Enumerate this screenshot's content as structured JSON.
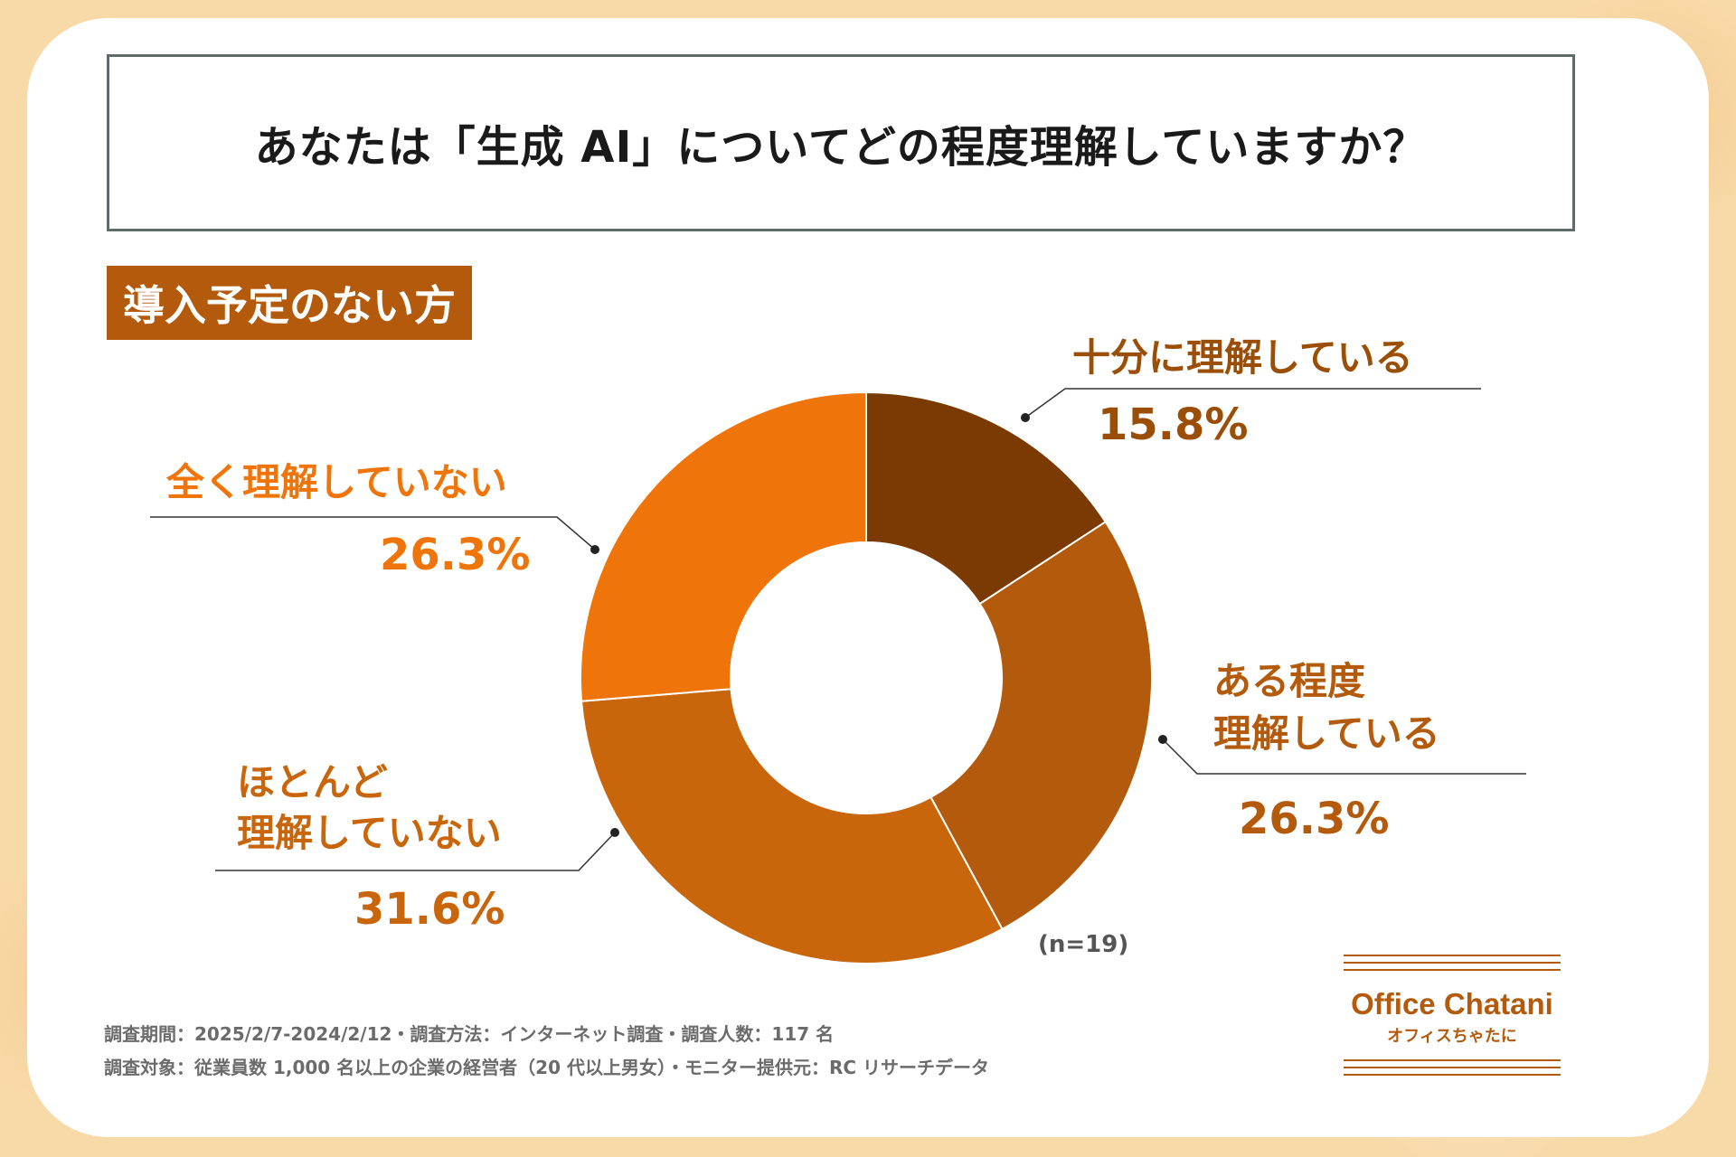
{
  "title": "あなたは「生成 AI」についてどの程度理解していますか？",
  "segment": "導入予定のない方",
  "n_label": "(n=19)",
  "colors": {
    "dark_brown": "#7a3a02",
    "brown": "#b35a0c",
    "dark_orange": "#c9660c",
    "orange": "#ef7409",
    "ring_border": "#ffffff"
  },
  "chart_data": {
    "type": "pie",
    "style": "donut",
    "title": "あなたは「生成 AI」についてどの程度理解していますか？",
    "categories": [
      "十分に理解している",
      "ある程度理解している",
      "ほとんど理解していない",
      "全く理解していない"
    ],
    "values": [
      15.8,
      26.3,
      31.6,
      26.3
    ],
    "unit": "%",
    "n": 19,
    "slices": [
      {
        "label_lines": [
          "十分に理解している"
        ],
        "value_text": "15.8%",
        "value": 15.8,
        "color": "#7a3a02",
        "text_color": "#9b4e06"
      },
      {
        "label_lines": [
          "ある程度",
          "理解している"
        ],
        "value_text": "26.3%",
        "value": 26.3,
        "color": "#b35a0c",
        "text_color": "#b35a0c"
      },
      {
        "label_lines": [
          "ほとんど",
          "理解していない"
        ],
        "value_text": "31.6%",
        "value": 31.6,
        "color": "#c9660c",
        "text_color": "#c9660c"
      },
      {
        "label_lines": [
          "全く理解していない"
        ],
        "value_text": "26.3%",
        "value": 26.3,
        "color": "#ef7409",
        "text_color": "#ef7409"
      }
    ]
  },
  "footer": {
    "line1": "調査期間：2025/2/7-2024/2/12・調査方法：インターネット調査・調査人数：117 名",
    "line2": "調査対象：従業員数 1,000 名以上の企業の経営者（20 代以上男女）・モニター提供元：RC リサーチデータ"
  },
  "logo": {
    "name": "Office Chatani",
    "sub": "オフィスちゃたに"
  }
}
